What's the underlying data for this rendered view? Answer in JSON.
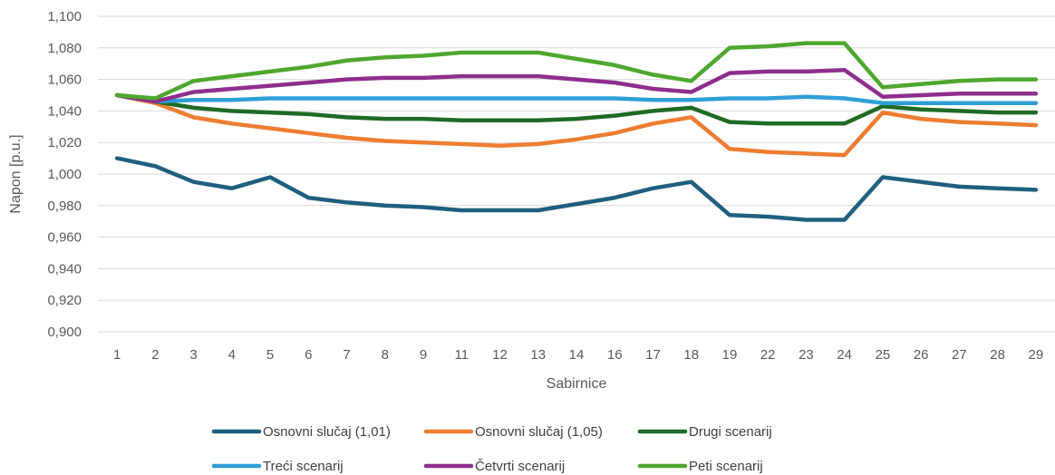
{
  "chart_data": {
    "type": "line",
    "title": "",
    "xlabel": "Sabirnice",
    "ylabel": "Napon [p.u.]",
    "ylim": [
      0.9,
      1.1
    ],
    "yticks": [
      "0,900",
      "0,920",
      "0,940",
      "0,960",
      "0,980",
      "1,000",
      "1,020",
      "1,040",
      "1,060",
      "1,080",
      "1,100"
    ],
    "grid": true,
    "legend_position": "bottom",
    "categories": [
      "1",
      "2",
      "3",
      "4",
      "5",
      "6",
      "7",
      "8",
      "9",
      "11",
      "12",
      "13",
      "14",
      "16",
      "17",
      "18",
      "19",
      "22",
      "23",
      "24",
      "25",
      "26",
      "27",
      "28",
      "29"
    ],
    "series": [
      {
        "name": "Osnovni slučaj (1,01)",
        "color": "#1f5f7f",
        "values": [
          1.01,
          1.005,
          0.995,
          0.991,
          0.998,
          0.985,
          0.982,
          0.98,
          0.979,
          0.977,
          0.977,
          0.977,
          0.981,
          0.985,
          0.991,
          0.995,
          0.974,
          0.973,
          0.971,
          0.971,
          0.998,
          0.995,
          0.992,
          0.991,
          0.99
        ]
      },
      {
        "name": "Osnovni slučaj (1,05)",
        "color": "#ed7d31",
        "values": [
          1.05,
          1.045,
          1.036,
          1.032,
          1.029,
          1.026,
          1.023,
          1.021,
          1.02,
          1.019,
          1.018,
          1.019,
          1.022,
          1.026,
          1.032,
          1.036,
          1.016,
          1.014,
          1.013,
          1.012,
          1.039,
          1.035,
          1.033,
          1.032,
          1.031
        ]
      },
      {
        "name": "Drugi scenarij",
        "color": "#1e6b25",
        "values": [
          1.05,
          1.046,
          1.042,
          1.04,
          1.039,
          1.038,
          1.036,
          1.035,
          1.035,
          1.034,
          1.034,
          1.034,
          1.035,
          1.037,
          1.04,
          1.042,
          1.033,
          1.032,
          1.032,
          1.032,
          1.043,
          1.041,
          1.04,
          1.039,
          1.039
        ]
      },
      {
        "name": "Treći scenarij",
        "color": "#2e9fd8",
        "values": [
          1.05,
          1.046,
          1.047,
          1.047,
          1.048,
          1.048,
          1.048,
          1.048,
          1.048,
          1.048,
          1.048,
          1.048,
          1.048,
          1.048,
          1.047,
          1.047,
          1.048,
          1.048,
          1.049,
          1.048,
          1.045,
          1.045,
          1.045,
          1.045,
          1.045
        ]
      },
      {
        "name": "Četvrti scenarij",
        "color": "#8e2e8e",
        "values": [
          1.05,
          1.046,
          1.052,
          1.054,
          1.056,
          1.058,
          1.06,
          1.061,
          1.061,
          1.062,
          1.062,
          1.062,
          1.06,
          1.058,
          1.054,
          1.052,
          1.064,
          1.065,
          1.065,
          1.066,
          1.049,
          1.05,
          1.051,
          1.051,
          1.051
        ]
      },
      {
        "name": "Peti scenarij",
        "color": "#4ea72e",
        "values": [
          1.05,
          1.048,
          1.059,
          1.062,
          1.065,
          1.068,
          1.072,
          1.074,
          1.075,
          1.077,
          1.077,
          1.077,
          1.073,
          1.069,
          1.063,
          1.059,
          1.08,
          1.081,
          1.083,
          1.083,
          1.055,
          1.057,
          1.059,
          1.06,
          1.06
        ]
      }
    ]
  }
}
